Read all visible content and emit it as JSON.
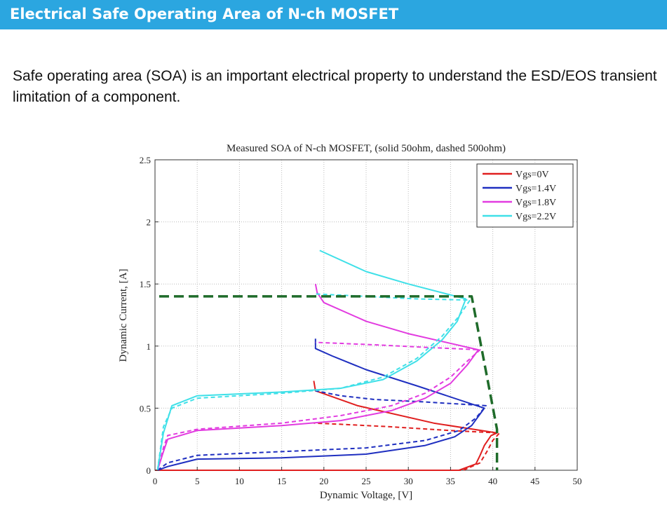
{
  "header": {
    "title": "Electrical Safe Operating Area of N-ch MOSFET"
  },
  "body": {
    "text": "Safe operating area (SOA) is an important electrical property to understand the ESD/EOS transient limitation of a component."
  },
  "colors": {
    "banner": "#2ba6e0",
    "vgs0": "#e01f1f",
    "vgs14": "#1f2fc0",
    "vgs18": "#e23be0",
    "vgs22": "#3fe0e8",
    "soa_limit": "#1f6b2a"
  },
  "chart_data": {
    "type": "line",
    "title": "Measured SOA of N-ch MOSFET, (solid 50ohm, dashed 500ohm)",
    "xlabel": "Dynamic Voltage, [V]",
    "ylabel": "Dynamic Current, [A]",
    "xlim": [
      0,
      50
    ],
    "ylim": [
      0,
      2.5
    ],
    "xticks": [
      "0",
      "5",
      "10",
      "15",
      "20",
      "25",
      "30",
      "35",
      "40",
      "45",
      "50"
    ],
    "yticks": [
      "0",
      "0.5",
      "1",
      "1.5",
      "2",
      "2.5"
    ],
    "grid": true,
    "legend_position": "top-right",
    "series": [
      {
        "name": "Vgs=0V",
        "color": "#e01f1f",
        "style": "solid",
        "x": [
          0,
          36,
          38,
          38.5,
          39,
          39.8,
          40.5,
          33,
          24,
          19,
          18.8
        ],
        "y": [
          0,
          0,
          0.05,
          0.12,
          0.2,
          0.28,
          0.3,
          0.38,
          0.52,
          0.64,
          0.72
        ]
      },
      {
        "name": "Vgs=0V",
        "color": "#e01f1f",
        "style": "dashed",
        "x": [
          0,
          36.5,
          38.5,
          39.3,
          40,
          40.8,
          35,
          28,
          22,
          18.8
        ],
        "y": [
          0,
          0,
          0.06,
          0.15,
          0.24,
          0.3,
          0.32,
          0.35,
          0.37,
          0.38
        ]
      },
      {
        "name": "Vgs=1.4V",
        "color": "#1f2fc0",
        "style": "solid",
        "x": [
          0.3,
          1.5,
          5,
          15,
          25,
          32,
          35.5,
          37.5,
          39,
          31,
          25,
          21,
          19,
          19
        ],
        "y": [
          0,
          0.03,
          0.09,
          0.1,
          0.13,
          0.2,
          0.27,
          0.36,
          0.5,
          0.68,
          0.81,
          0.92,
          0.98,
          1.06
        ]
      },
      {
        "name": "Vgs=1.4V",
        "color": "#1f2fc0",
        "style": "dashed",
        "x": [
          0.3,
          1.5,
          5,
          15,
          25,
          32,
          36,
          38,
          39.2,
          32,
          26,
          22,
          19
        ],
        "y": [
          0,
          0.06,
          0.12,
          0.15,
          0.18,
          0.24,
          0.32,
          0.42,
          0.52,
          0.55,
          0.57,
          0.6,
          0.64
        ]
      },
      {
        "name": "Vgs=1.8V",
        "color": "#e23be0",
        "style": "solid",
        "x": [
          0.3,
          1,
          1.5,
          5,
          15,
          22,
          28,
          32,
          35,
          37,
          38.3,
          30,
          25,
          20,
          19.2,
          19
        ],
        "y": [
          0,
          0.15,
          0.25,
          0.32,
          0.36,
          0.4,
          0.48,
          0.58,
          0.7,
          0.85,
          0.97,
          1.1,
          1.2,
          1.35,
          1.43,
          1.5
        ]
      },
      {
        "name": "Vgs=1.8V",
        "color": "#e23be0",
        "style": "dashed",
        "x": [
          0.3,
          1,
          1.5,
          5,
          15,
          22,
          28,
          32,
          35,
          37,
          38.5,
          32,
          26,
          19
        ],
        "y": [
          0,
          0.18,
          0.28,
          0.33,
          0.38,
          0.44,
          0.52,
          0.62,
          0.75,
          0.88,
          0.97,
          0.99,
          1.01,
          1.03
        ]
      },
      {
        "name": "Vgs=2.2V",
        "color": "#3fe0e8",
        "style": "solid",
        "x": [
          0.3,
          1,
          2,
          5,
          15,
          22,
          27,
          31,
          34,
          35.8,
          36.8,
          30,
          25,
          19.5
        ],
        "y": [
          0,
          0.3,
          0.52,
          0.6,
          0.63,
          0.66,
          0.73,
          0.88,
          1.05,
          1.2,
          1.38,
          1.5,
          1.6,
          1.77
        ]
      },
      {
        "name": "Vgs=2.2V",
        "color": "#3fe0e8",
        "style": "dashed",
        "x": [
          0.3,
          1,
          2,
          5,
          15,
          22,
          27,
          31,
          34,
          36,
          37.3,
          31,
          25,
          19
        ],
        "y": [
          0,
          0.35,
          0.5,
          0.58,
          0.62,
          0.66,
          0.75,
          0.9,
          1.08,
          1.24,
          1.37,
          1.38,
          1.4,
          1.42
        ]
      },
      {
        "name": "",
        "color": "#1f6b2a",
        "style": "dashed-thick",
        "x": [
          0.5,
          37.5,
          40.5,
          40.5
        ],
        "y": [
          1.4,
          1.4,
          0.33,
          0
        ]
      }
    ]
  }
}
